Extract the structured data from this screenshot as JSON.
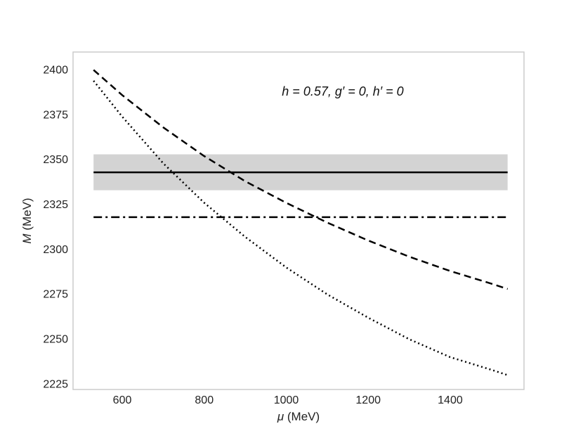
{
  "chart_data": {
    "type": "line",
    "title": "",
    "xlabel": "μ (MeV)",
    "xlabel_symbol": "μ",
    "xlabel_unit": " (MeV)",
    "ylabel": "M (MeV)",
    "ylabel_symbol": "M",
    "ylabel_unit": " (MeV)",
    "xlim": [
      480,
      1580
    ],
    "ylim": [
      2222,
      2410
    ],
    "xticks": [
      600,
      800,
      1000,
      1200,
      1400
    ],
    "yticks": [
      2225,
      2250,
      2275,
      2300,
      2325,
      2350,
      2375,
      2400
    ],
    "grid": false,
    "annotation": "h = 0.57, g′ = 0, h′ = 0",
    "band": {
      "x": [
        530,
        1540
      ],
      "y_low": 2333,
      "y_high": 2353,
      "color": "#d3d3d3"
    },
    "series": [
      {
        "style": "solid",
        "x": [
          530,
          1540
        ],
        "y": [
          2343,
          2343
        ]
      },
      {
        "style": "dashdot",
        "x": [
          530,
          1540
        ],
        "y": [
          2318,
          2318
        ]
      },
      {
        "style": "dashed",
        "x": [
          530,
          600,
          700,
          800,
          900,
          1000,
          1100,
          1200,
          1300,
          1400,
          1500,
          1540
        ],
        "y": [
          2400,
          2386,
          2368,
          2352,
          2338,
          2326,
          2315,
          2305,
          2296,
          2288,
          2281,
          2278
        ]
      },
      {
        "style": "dotted",
        "x": [
          530,
          600,
          700,
          800,
          900,
          1000,
          1100,
          1200,
          1300,
          1400,
          1500,
          1540
        ],
        "y": [
          2394,
          2374,
          2348,
          2326,
          2307,
          2290,
          2275,
          2262,
          2250,
          2240,
          2233,
          2230
        ]
      }
    ],
    "colors": {
      "line": "#000000",
      "frame": "#cccccc",
      "band": "#d3d3d3"
    }
  }
}
